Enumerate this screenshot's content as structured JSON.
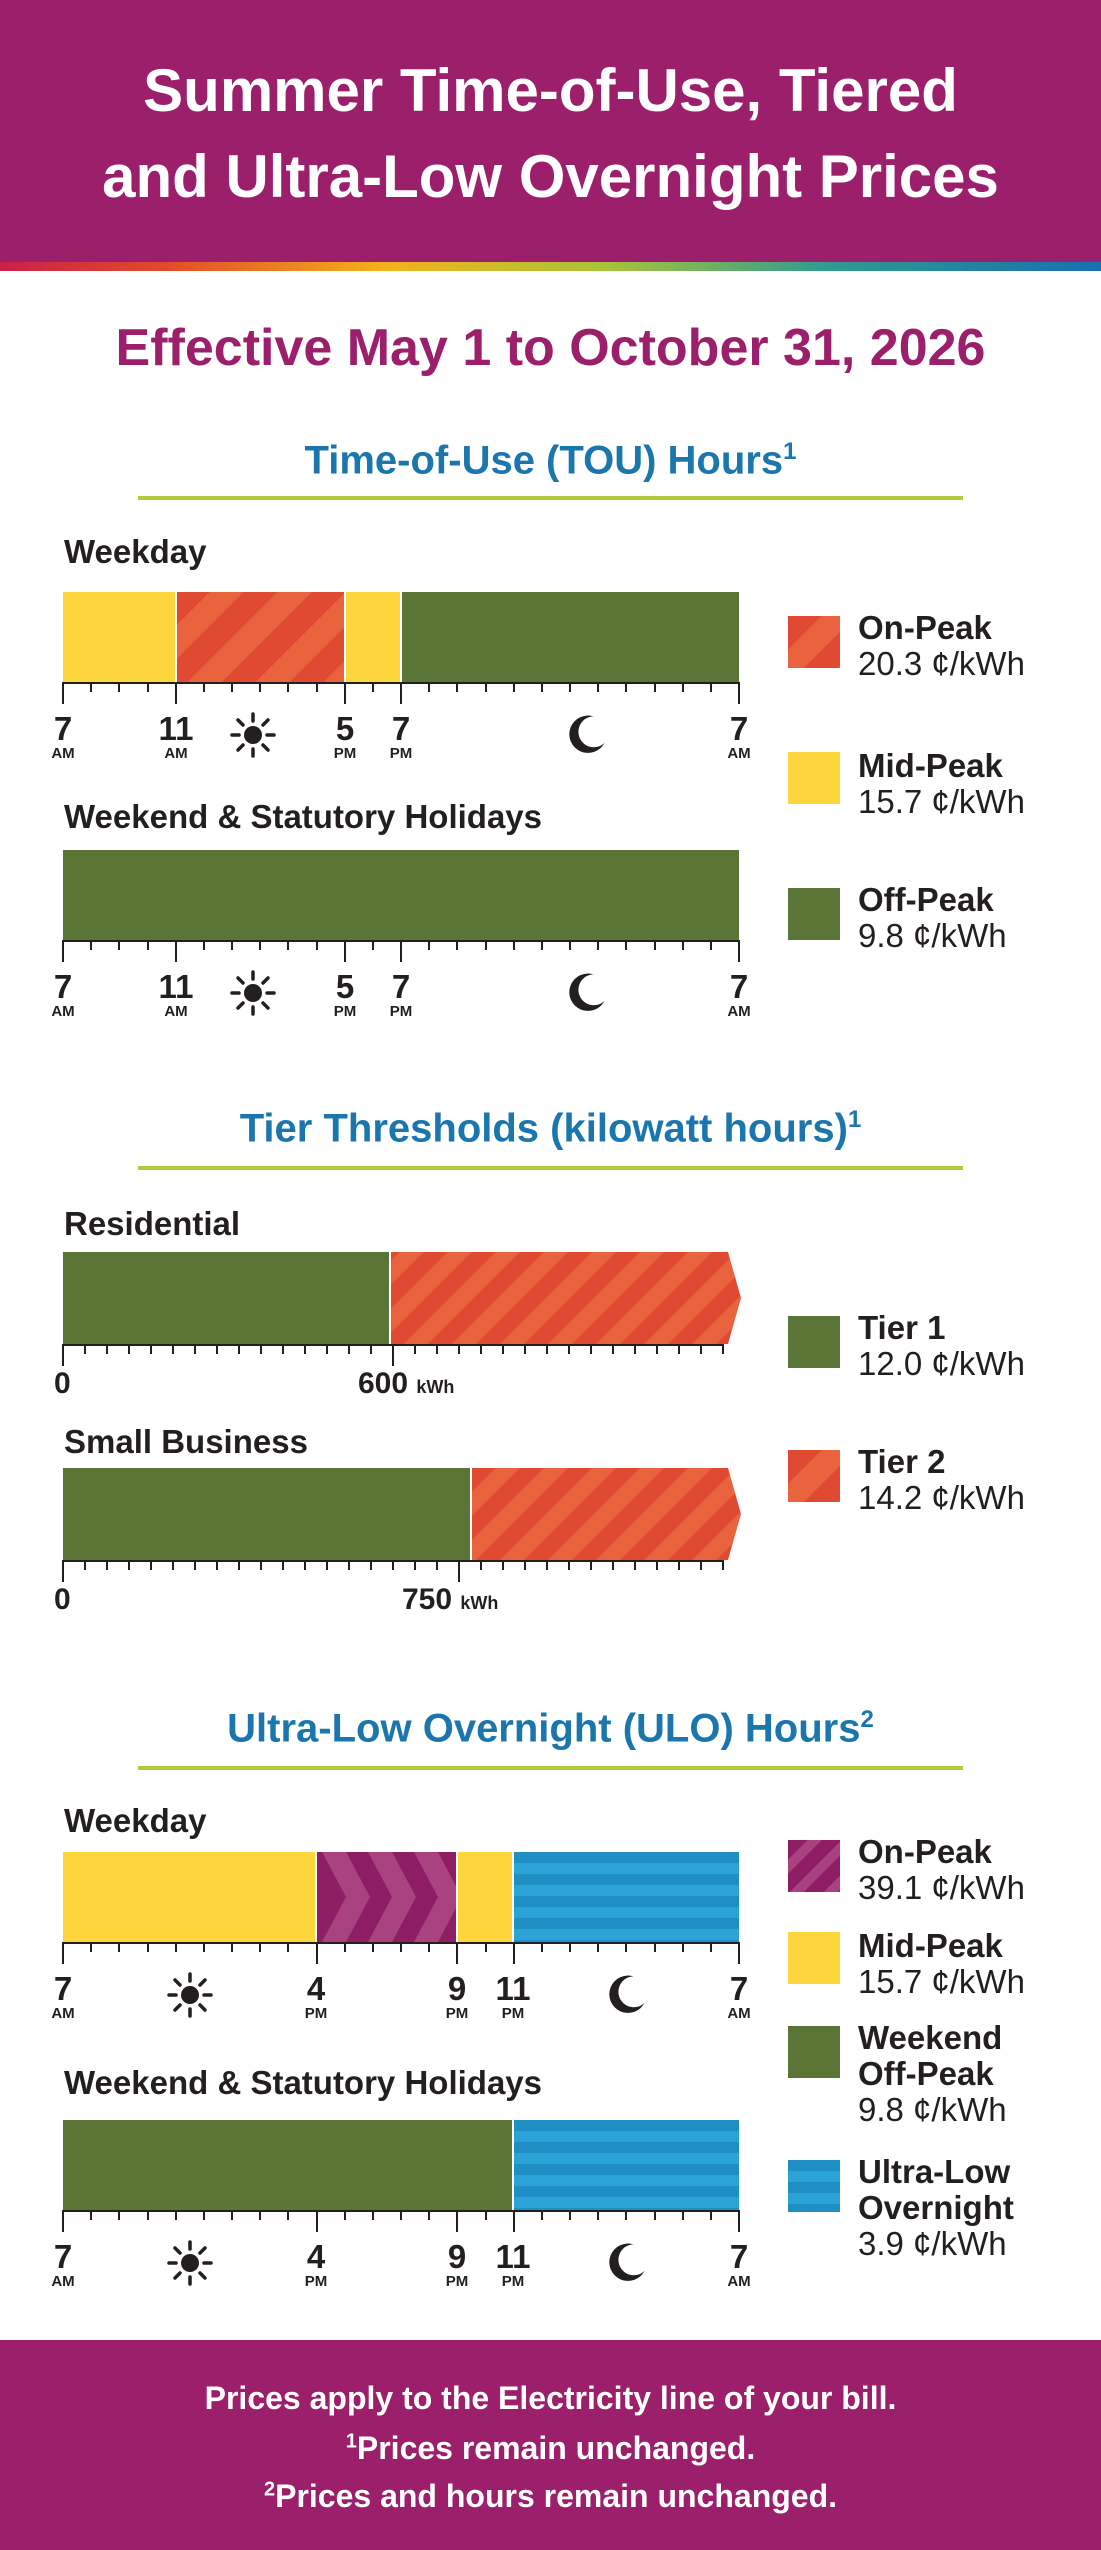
{
  "header": {
    "title_line1": "Summer Time-of-Use, Tiered",
    "title_line2": "and Ultra-Low Overnight Prices"
  },
  "effective": "Effective May 1 to October 31, 2026",
  "tou": {
    "title": "Time-of-Use (TOU) Hours",
    "note": "1",
    "weekday_label": "Weekday",
    "weekend_label": "Weekend & Statutory Holidays",
    "weekday_schedule": [
      {
        "period": "Mid-Peak",
        "start": "7 AM",
        "end": "11 AM"
      },
      {
        "period": "On-Peak",
        "start": "11 AM",
        "end": "5 PM"
      },
      {
        "period": "Mid-Peak",
        "start": "5 PM",
        "end": "7 PM"
      },
      {
        "period": "Off-Peak",
        "start": "7 PM",
        "end": "7 AM"
      }
    ],
    "weekend_schedule": [
      {
        "period": "Off-Peak",
        "start": "7 AM",
        "end": "7 AM"
      }
    ],
    "axis_labels": [
      {
        "n": "7",
        "ap": "AM"
      },
      {
        "n": "11",
        "ap": "AM"
      },
      {
        "n": "5",
        "ap": "PM"
      },
      {
        "n": "7",
        "ap": "PM"
      },
      {
        "n": "7",
        "ap": "AM"
      }
    ],
    "legend": [
      {
        "name": "On-Peak",
        "price": "20.3 ¢/kWh"
      },
      {
        "name": "Mid-Peak",
        "price": "15.7 ¢/kWh"
      },
      {
        "name": "Off-Peak",
        "price": "9.8 ¢/kWh"
      }
    ]
  },
  "tiers": {
    "title": "Tier Thresholds (kilowatt hours)",
    "note": "1",
    "residential_label": "Residential",
    "residential_threshold": "600",
    "business_label": "Small Business",
    "business_threshold": "750",
    "zero": "0",
    "unit": "kWh",
    "legend": [
      {
        "name": "Tier 1",
        "price": "12.0 ¢/kWh"
      },
      {
        "name": "Tier 2",
        "price": "14.2 ¢/kWh"
      }
    ]
  },
  "ulo": {
    "title": "Ultra-Low Overnight (ULO) Hours",
    "note": "2",
    "weekday_label": "Weekday",
    "weekend_label": "Weekend & Statutory Holidays",
    "weekday_schedule": [
      {
        "period": "Mid-Peak",
        "start": "7 AM",
        "end": "4 PM"
      },
      {
        "period": "On-Peak",
        "start": "4 PM",
        "end": "9 PM"
      },
      {
        "period": "Mid-Peak",
        "start": "9 PM",
        "end": "11 PM"
      },
      {
        "period": "Ultra-Low Overnight",
        "start": "11 PM",
        "end": "7 AM"
      }
    ],
    "weekend_schedule": [
      {
        "period": "Weekend Off-Peak",
        "start": "7 AM",
        "end": "11 PM"
      },
      {
        "period": "Ultra-Low Overnight",
        "start": "11 PM",
        "end": "7 AM"
      }
    ],
    "axis_labels": [
      {
        "n": "7",
        "ap": "AM"
      },
      {
        "n": "4",
        "ap": "PM"
      },
      {
        "n": "9",
        "ap": "PM"
      },
      {
        "n": "11",
        "ap": "PM"
      },
      {
        "n": "7",
        "ap": "AM"
      }
    ],
    "legend": [
      {
        "name": "On-Peak",
        "price": "39.1 ¢/kWh"
      },
      {
        "name": "Mid-Peak",
        "price": "15.7 ¢/kWh"
      },
      {
        "name1": "Weekend",
        "name2": "Off-Peak",
        "price": "9.8 ¢/kWh"
      },
      {
        "name1": "Ultra-Low",
        "name2": "Overnight",
        "price": "3.9 ¢/kWh"
      }
    ]
  },
  "footer": {
    "line1": "Prices apply to the Electricity line of your bill.",
    "note1_mark": "1",
    "line2": "Prices remain unchanged.",
    "note2_mark": "2",
    "line3": "Prices and hours remain unchanged."
  },
  "colors": {
    "brand_purple": "#9b1f6a",
    "section_blue": "#1a76ad",
    "on_peak_red": "#e04a32",
    "mid_peak_yellow": "#fdd63d",
    "off_peak_green": "#5a7535",
    "ulo_blue": "#1f8ec3",
    "ulo_on_peak_purple": "#8f1d63"
  }
}
